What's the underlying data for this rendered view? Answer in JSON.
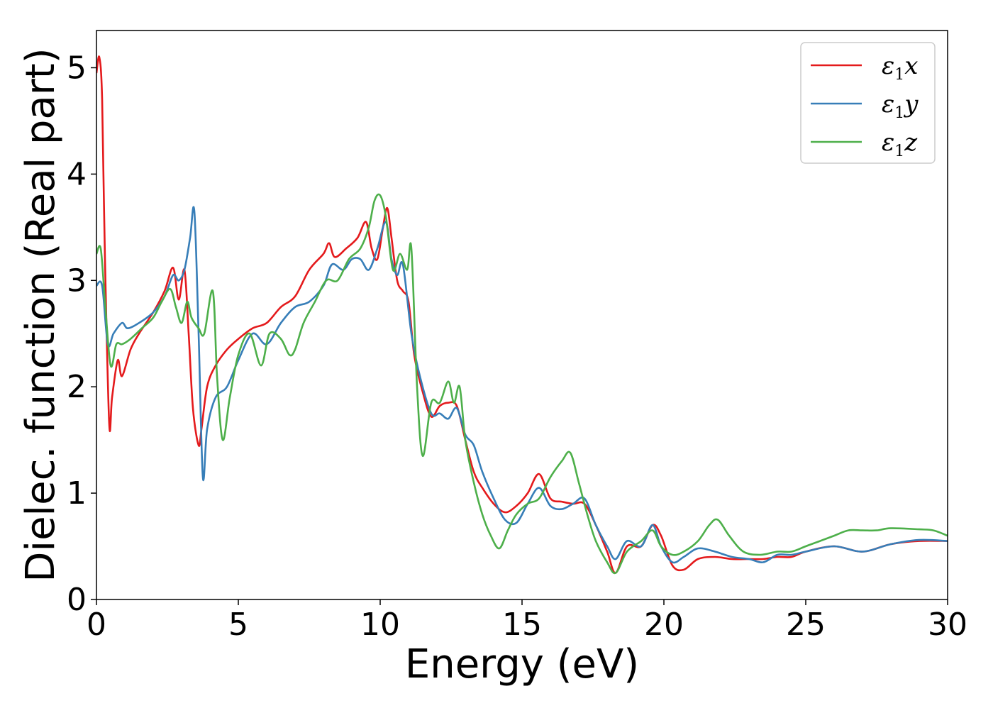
{
  "chart_data": {
    "type": "line",
    "xlabel": "Energy (eV)",
    "ylabel": "Dielec. function (Real part)",
    "xlim": [
      0,
      30
    ],
    "ylim": [
      0,
      5.35
    ],
    "x_ticks": [
      0,
      5,
      10,
      15,
      20,
      25,
      30
    ],
    "y_ticks": [
      0,
      1,
      2,
      3,
      4,
      5
    ],
    "grid": false,
    "legend_position": "top-right",
    "series": [
      {
        "name": "ε₁x",
        "legend_main": "ε",
        "legend_sub": "1",
        "legend_var": "x",
        "color": "#e41a1c",
        "x": [
          0,
          0.1,
          0.2,
          0.3,
          0.45,
          0.55,
          0.75,
          0.9,
          1.2,
          1.5,
          2.0,
          2.4,
          2.7,
          2.9,
          3.1,
          3.25,
          3.4,
          3.6,
          3.7,
          3.9,
          4.2,
          4.6,
          5.0,
          5.5,
          6.0,
          6.5,
          7.0,
          7.5,
          8.0,
          8.2,
          8.4,
          8.8,
          9.2,
          9.5,
          9.7,
          9.9,
          10.1,
          10.25,
          10.4,
          10.6,
          10.8,
          11.0,
          11.2,
          11.5,
          11.8,
          12.1,
          12.4,
          12.7,
          13.0,
          13.3,
          13.6,
          14.0,
          14.4,
          14.8,
          15.2,
          15.6,
          16.0,
          16.4,
          16.8,
          17.2,
          17.6,
          18.0,
          18.3,
          18.7,
          19.2,
          19.6,
          19.9,
          20.3,
          20.7,
          21.2,
          21.8,
          22.4,
          23.0,
          23.5,
          24.0,
          24.5,
          25.0,
          26.0,
          27.0,
          28.0,
          29.0,
          30.0
        ],
        "y": [
          4.95,
          5.1,
          4.7,
          3.2,
          1.65,
          1.9,
          2.25,
          2.1,
          2.35,
          2.5,
          2.7,
          2.9,
          3.12,
          2.82,
          3.1,
          2.5,
          1.8,
          1.45,
          1.6,
          2.0,
          2.2,
          2.35,
          2.45,
          2.55,
          2.6,
          2.75,
          2.85,
          3.1,
          3.25,
          3.35,
          3.22,
          3.3,
          3.4,
          3.55,
          3.3,
          3.2,
          3.5,
          3.68,
          3.4,
          3.0,
          2.9,
          2.8,
          2.3,
          1.95,
          1.72,
          1.82,
          1.85,
          1.82,
          1.5,
          1.2,
          1.05,
          0.9,
          0.82,
          0.88,
          1.0,
          1.18,
          0.95,
          0.92,
          0.9,
          0.9,
          0.7,
          0.45,
          0.25,
          0.5,
          0.5,
          0.7,
          0.6,
          0.32,
          0.28,
          0.38,
          0.4,
          0.38,
          0.38,
          0.38,
          0.4,
          0.4,
          0.45,
          0.5,
          0.45,
          0.52,
          0.55,
          0.55
        ]
      },
      {
        "name": "ε₁y",
        "legend_main": "ε",
        "legend_sub": "1",
        "legend_var": "y",
        "color": "#377eb8",
        "x": [
          0,
          0.2,
          0.4,
          0.6,
          0.9,
          1.1,
          1.5,
          2.0,
          2.4,
          2.7,
          2.9,
          3.1,
          3.3,
          3.45,
          3.6,
          3.75,
          3.9,
          4.2,
          4.6,
          5.0,
          5.5,
          6.0,
          6.5,
          7.0,
          7.5,
          8.0,
          8.3,
          8.7,
          9.0,
          9.3,
          9.6,
          9.9,
          10.2,
          10.4,
          10.6,
          10.8,
          11.1,
          11.4,
          11.8,
          12.1,
          12.4,
          12.7,
          13.0,
          13.3,
          13.6,
          14.0,
          14.4,
          14.8,
          15.2,
          15.6,
          16.0,
          16.4,
          16.8,
          17.2,
          17.6,
          18.0,
          18.3,
          18.7,
          19.2,
          19.6,
          19.9,
          20.3,
          20.7,
          21.2,
          21.8,
          22.4,
          23.0,
          23.5,
          24.0,
          24.5,
          25.0,
          26.0,
          27.0,
          28.0,
          29.0,
          30.0
        ],
        "y": [
          2.95,
          2.95,
          2.4,
          2.5,
          2.6,
          2.55,
          2.6,
          2.7,
          2.85,
          3.05,
          3.0,
          3.1,
          3.4,
          3.65,
          2.5,
          1.15,
          1.6,
          1.9,
          2.0,
          2.25,
          2.5,
          2.4,
          2.6,
          2.75,
          2.8,
          2.95,
          3.15,
          3.1,
          3.2,
          3.2,
          3.1,
          3.3,
          3.55,
          3.2,
          3.05,
          3.15,
          2.5,
          2.1,
          1.75,
          1.75,
          1.7,
          1.8,
          1.55,
          1.45,
          1.2,
          0.95,
          0.75,
          0.72,
          0.9,
          1.05,
          0.88,
          0.85,
          0.9,
          0.95,
          0.7,
          0.5,
          0.38,
          0.55,
          0.5,
          0.7,
          0.5,
          0.35,
          0.4,
          0.48,
          0.45,
          0.4,
          0.38,
          0.35,
          0.42,
          0.42,
          0.45,
          0.5,
          0.45,
          0.52,
          0.56,
          0.55
        ]
      },
      {
        "name": "ε₁z",
        "legend_main": "ε",
        "legend_sub": "1",
        "legend_var": "z",
        "color": "#4daf4a",
        "x": [
          0,
          0.15,
          0.3,
          0.5,
          0.7,
          0.9,
          1.2,
          1.6,
          2.0,
          2.3,
          2.6,
          2.8,
          3.0,
          3.2,
          3.35,
          3.6,
          3.8,
          4.1,
          4.25,
          4.45,
          4.7,
          5.0,
          5.4,
          5.8,
          6.1,
          6.5,
          6.8,
          7.0,
          7.3,
          7.7,
          8.1,
          8.5,
          8.9,
          9.3,
          9.6,
          9.8,
          10.0,
          10.2,
          10.45,
          10.7,
          10.95,
          11.1,
          11.3,
          11.5,
          11.8,
          12.1,
          12.4,
          12.6,
          12.8,
          13.0,
          13.3,
          13.6,
          13.9,
          14.2,
          14.5,
          14.8,
          15.2,
          15.6,
          16.0,
          16.4,
          16.7,
          17.0,
          17.3,
          17.6,
          18.0,
          18.3,
          18.7,
          19.2,
          19.6,
          19.9,
          20.3,
          20.7,
          21.2,
          21.6,
          21.9,
          22.3,
          22.8,
          23.4,
          24.0,
          24.5,
          25.0,
          25.5,
          26.0,
          26.5,
          27.0,
          27.5,
          28.0,
          29.0,
          29.5,
          30.0
        ],
        "y": [
          3.25,
          3.3,
          2.8,
          2.2,
          2.4,
          2.4,
          2.45,
          2.55,
          2.65,
          2.8,
          2.92,
          2.75,
          2.6,
          2.8,
          2.65,
          2.55,
          2.5,
          2.9,
          2.1,
          1.5,
          1.9,
          2.3,
          2.5,
          2.2,
          2.5,
          2.45,
          2.3,
          2.35,
          2.6,
          2.8,
          3.0,
          3.0,
          3.2,
          3.3,
          3.5,
          3.75,
          3.8,
          3.6,
          3.1,
          3.25,
          3.1,
          3.3,
          2.0,
          1.35,
          1.85,
          1.85,
          2.05,
          1.85,
          2.0,
          1.5,
          1.1,
          0.8,
          0.6,
          0.48,
          0.65,
          0.8,
          0.9,
          0.95,
          1.15,
          1.3,
          1.38,
          1.1,
          0.8,
          0.55,
          0.35,
          0.25,
          0.45,
          0.55,
          0.65,
          0.5,
          0.42,
          0.45,
          0.55,
          0.7,
          0.75,
          0.6,
          0.45,
          0.42,
          0.45,
          0.45,
          0.5,
          0.55,
          0.6,
          0.65,
          0.65,
          0.65,
          0.67,
          0.66,
          0.65,
          0.6
        ]
      }
    ]
  }
}
